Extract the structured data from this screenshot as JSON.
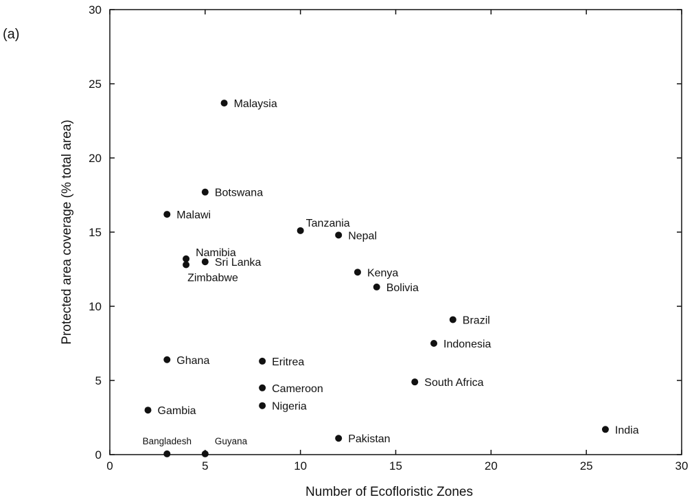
{
  "panel_label": "(a)",
  "chart_data": {
    "type": "scatter",
    "xlabel": "Number of Ecofloristic Zones",
    "ylabel": "Protected area coverage (% total area)",
    "xlim": [
      0,
      30
    ],
    "ylim": [
      0,
      30
    ],
    "xticks": [
      0,
      5,
      10,
      15,
      20,
      25,
      30
    ],
    "yticks": [
      0,
      5,
      10,
      15,
      20,
      25,
      30
    ],
    "grid": false,
    "points": [
      {
        "label": "Malaysia",
        "x": 6,
        "y": 23.7
      },
      {
        "label": "Botswana",
        "x": 5,
        "y": 17.7
      },
      {
        "label": "Malawi",
        "x": 3,
        "y": 16.2
      },
      {
        "label": "Tanzania",
        "x": 10,
        "y": 15.1
      },
      {
        "label": "Nepal",
        "x": 12,
        "y": 14.8
      },
      {
        "label": "Namibia",
        "x": 4,
        "y": 13.2
      },
      {
        "label": "Sri Lanka",
        "x": 5,
        "y": 13.0
      },
      {
        "label": "Zimbabwe",
        "x": 4,
        "y": 12.8
      },
      {
        "label": "Kenya",
        "x": 13,
        "y": 12.3
      },
      {
        "label": "Bolivia",
        "x": 14,
        "y": 11.3
      },
      {
        "label": "Brazil",
        "x": 18,
        "y": 9.1
      },
      {
        "label": "Indonesia",
        "x": 17,
        "y": 7.5
      },
      {
        "label": "Ghana",
        "x": 3,
        "y": 6.4
      },
      {
        "label": "Eritrea",
        "x": 8,
        "y": 6.3
      },
      {
        "label": "South Africa",
        "x": 16,
        "y": 4.9
      },
      {
        "label": "Cameroon",
        "x": 8,
        "y": 4.5
      },
      {
        "label": "Nigeria",
        "x": 8,
        "y": 3.3
      },
      {
        "label": "Gambia",
        "x": 2,
        "y": 3.0
      },
      {
        "label": "India",
        "x": 26,
        "y": 1.7
      },
      {
        "label": "Pakistan",
        "x": 12,
        "y": 1.1
      },
      {
        "label": "Bangladesh",
        "x": 3,
        "y": 0.05
      },
      {
        "label": "Guyana",
        "x": 5,
        "y": 0.05
      }
    ]
  }
}
